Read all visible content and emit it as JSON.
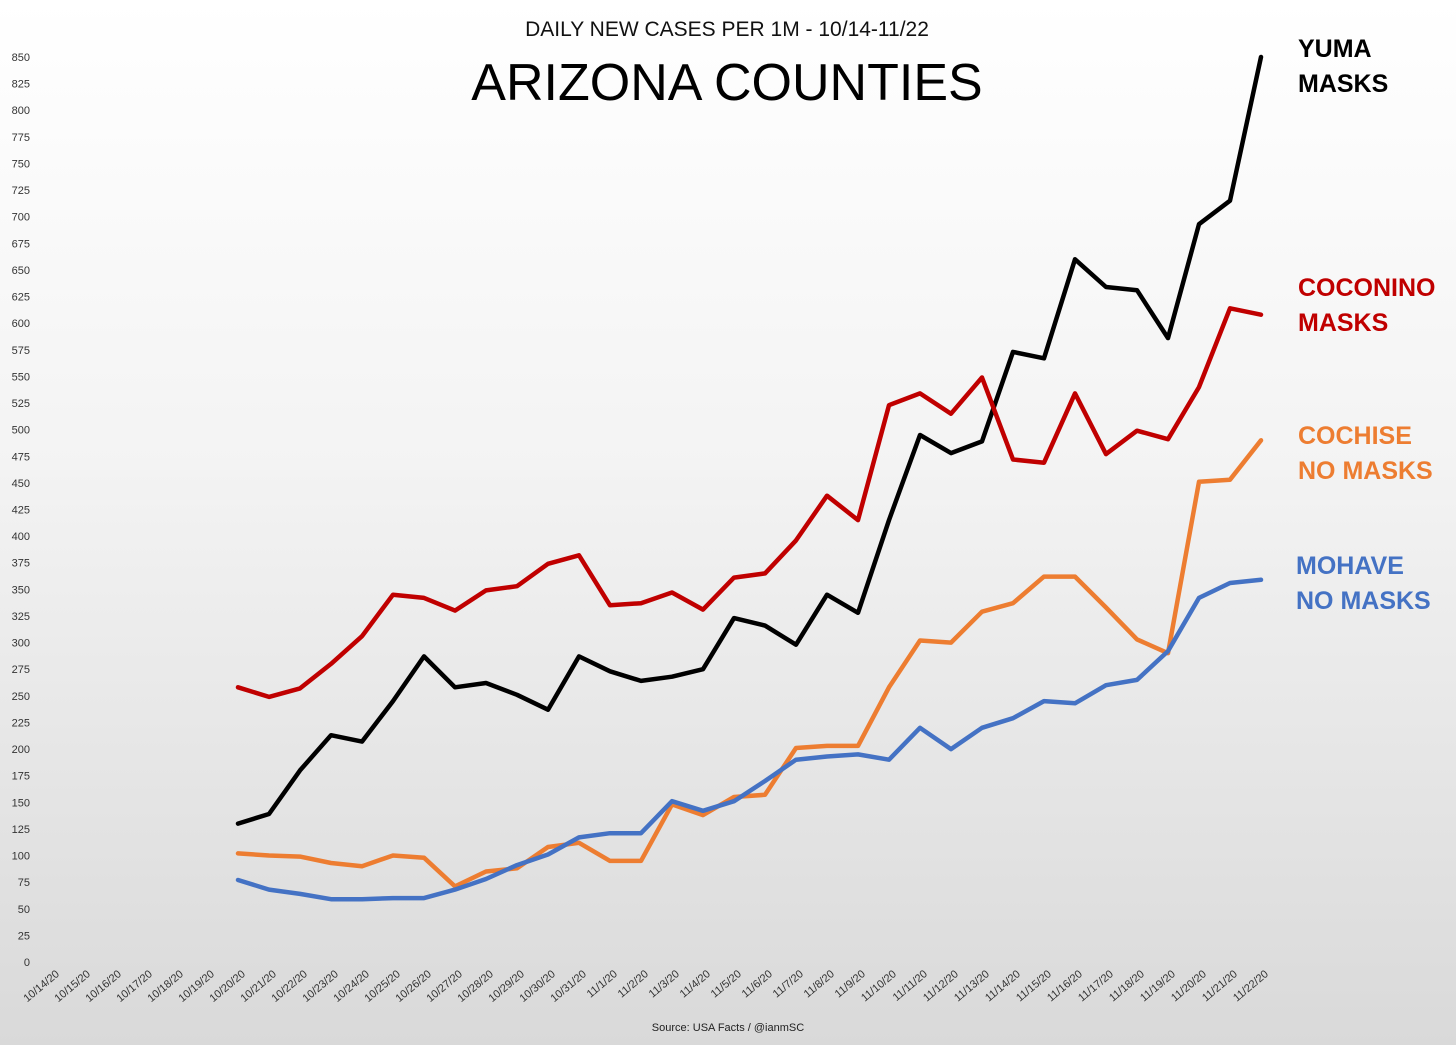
{
  "chart_data": {
    "type": "line",
    "subtitle": "DAILY NEW CASES PER 1M - 10/14-11/22",
    "title": "ARIZONA COUNTIES",
    "source": "Source: USA Facts / @ianmSC",
    "ylim": [
      0,
      850
    ],
    "ytick_step": 25,
    "grid": false,
    "legend": "direct labels at line ends (right)",
    "x": [
      "10/14/20",
      "10/15/20",
      "10/16/20",
      "10/17/20",
      "10/18/20",
      "10/19/20",
      "10/20/20",
      "10/21/20",
      "10/22/20",
      "10/23/20",
      "10/24/20",
      "10/25/20",
      "10/26/20",
      "10/27/20",
      "10/28/20",
      "10/29/20",
      "10/30/20",
      "10/31/20",
      "11/1/20",
      "11/2/20",
      "11/3/20",
      "11/4/20",
      "11/5/20",
      "11/6/20",
      "11/7/20",
      "11/8/20",
      "11/9/20",
      "11/10/20",
      "11/11/20",
      "11/12/20",
      "11/13/20",
      "11/14/20",
      "11/15/20",
      "11/16/20",
      "11/17/20",
      "11/18/20",
      "11/19/20",
      "11/20/20",
      "11/21/20",
      "11/22/20"
    ],
    "series": [
      {
        "name_lines": [
          "YUMA",
          "MASKS"
        ],
        "color": "#000000",
        "values": [
          null,
          null,
          null,
          null,
          null,
          null,
          130,
          139,
          180,
          213,
          207,
          245,
          287,
          258,
          262,
          251,
          237,
          287,
          273,
          264,
          268,
          275,
          323,
          316,
          298,
          345,
          328,
          415,
          495,
          478,
          489,
          573,
          567,
          660,
          634,
          631,
          586,
          693,
          715,
          850
        ]
      },
      {
        "name_lines": [
          "COCONINO",
          "MASKS"
        ],
        "color": "#c00000",
        "values": [
          null,
          null,
          null,
          null,
          null,
          null,
          258,
          249,
          257,
          280,
          306,
          345,
          342,
          330,
          349,
          353,
          374,
          382,
          335,
          337,
          347,
          331,
          361,
          365,
          396,
          438,
          415,
          523,
          534,
          515,
          549,
          472,
          469,
          534,
          477,
          499,
          491,
          540,
          614,
          608
        ]
      },
      {
        "name_lines": [
          "COCHISE",
          "NO MASKS"
        ],
        "color": "#ed7d31",
        "values": [
          null,
          null,
          null,
          null,
          null,
          null,
          102,
          100,
          99,
          93,
          90,
          100,
          98,
          71,
          85,
          88,
          108,
          112,
          95,
          95,
          148,
          138,
          155,
          157,
          201,
          203,
          203,
          258,
          302,
          300,
          329,
          337,
          362,
          362,
          333,
          303,
          290,
          451,
          453,
          490
        ]
      },
      {
        "name_lines": [
          "MOHAVE",
          "NO MASKS"
        ],
        "color": "#4472c4",
        "values": [
          null,
          null,
          null,
          null,
          null,
          null,
          77,
          68,
          64,
          59,
          59,
          60,
          60,
          68,
          78,
          91,
          101,
          117,
          121,
          121,
          151,
          142,
          151,
          170,
          190,
          193,
          195,
          190,
          220,
          200,
          220,
          229,
          245,
          243,
          260,
          265,
          292,
          342,
          356,
          359
        ]
      }
    ]
  }
}
